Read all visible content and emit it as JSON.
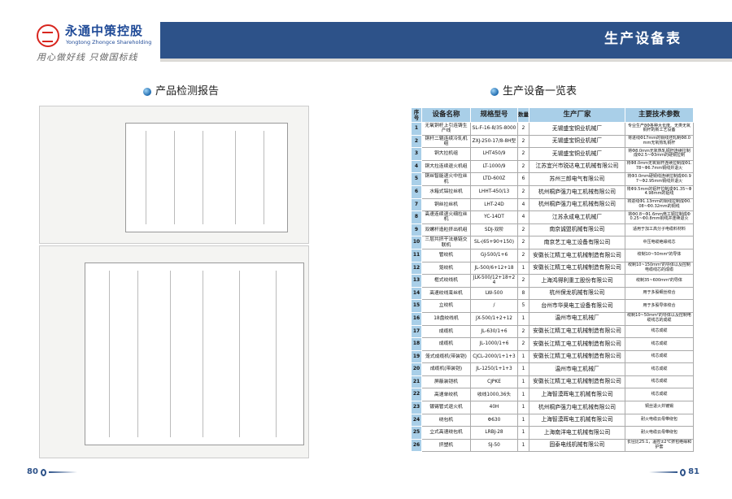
{
  "brand": {
    "name_cn": "永通中策控股",
    "name_en": "Yongtong Zhongce Shareholding",
    "slogan": "用心做好线  只做国标线",
    "logo_color": "#d8261f",
    "brand_color": "#1f4a97"
  },
  "header": {
    "title": "生产设备表",
    "bar_color": "#2d5289"
  },
  "left": {
    "section_title": "产品检测报告",
    "page_number": "80"
  },
  "right": {
    "section_title": "生产设备一览表",
    "page_number": "81"
  },
  "table": {
    "headers": [
      "序号",
      "设备名称",
      "规格型号",
      "数量",
      "生产厂家",
      "主要技术参数"
    ],
    "header_color": "#a9cfe8",
    "rows": [
      [
        "1",
        "无氧铜杆上引连铸生产线",
        "SL-F-16-8/35-8000",
        "2",
        "无锡盛宝铜业机械厂",
        "专业生产8Φ各种大长度、无类无氧铜杆的新工艺设备"
      ],
      [
        "2",
        "铜杆二辊连续冷轧机组",
        "ZXJ-250-17/8-8H型",
        "2",
        "无锡盛宝铜业机械厂",
        "将进线Φ17mm的铜线坯轧制Φ8.0mm无氧热轧铜杆"
      ],
      [
        "3",
        "铜大拉机组",
        "LHT450/9",
        "2",
        "无锡盛宝铜业机械厂",
        "将Φ8.0mm无氧热轧铜杆连续拉制成Φ2.5~Φ3mm的硬铜拉制"
      ],
      [
        "4",
        "铜大拉连续退火机组",
        "LT-1000/9",
        "2",
        "江苏宜兴市锐达电工机械有限公司",
        "将Φ8.0mm无氧铜杆连续拉制成Φ1.78~Φ6.7mm铜线并退火"
      ],
      [
        "5",
        "铜丝智能退火中拉丝机",
        "LTD-600Z",
        "6",
        "苏州三郎电气有限公司",
        "将Φ3.0mm硬铜线连续拉制成Φ0.97~Φ2.95mm铜线并退火"
      ],
      [
        "6",
        "水箱式铝拉丝机",
        "LHHT-450/13",
        "2",
        "杭州桐庐强力电工机械有限公司",
        "将Φ9.5mm的铝杆拉制成Φ1.35~Φ4.98mm的铝线"
      ],
      [
        "7",
        "铜丝拉丝机",
        "LHT-24D",
        "4",
        "杭州桐庐强力电工机械有限公司",
        "将进线Φ1.13mm的铜线拉制成Φ0.08~Φ0.32mm的铜线"
      ],
      [
        "8",
        "高速连续退火细拉丝机",
        "YC-14DT",
        "4",
        "江苏永成电工机械厂",
        "将Φ0.8~Φ1.6mm电工铜拉制成Φ0.25~Φ0.8mm铜线并连续退火"
      ],
      [
        "9",
        "双螺杆造粒挤出机组",
        "SDJ-双阶",
        "2",
        "南京诚盟机械有限公司",
        "适用于加工高分子电缆料材料"
      ],
      [
        "10",
        "三层共挤干法悬链交联机",
        "SL-(65+90+150)",
        "2",
        "南京艺工电工设备有限公司",
        "中压电缆绝缘线芯"
      ],
      [
        "11",
        "管绞机",
        "GJ-500/1+6",
        "2",
        "安徽长江精工电工机械制造有限公司",
        "绞制10~50mm²的导体"
      ],
      [
        "12",
        "笼绞机",
        "JL-500/6+12+18",
        "1",
        "安徽长江精工电工机械制造有限公司",
        "绞制10~150mm²的导体以及控制电缆线芯的成缆"
      ],
      [
        "13",
        "框式绞线机",
        "JLK-500/12+18+24",
        "2",
        "上海鸿得利重工股份有限公司",
        "绞制35~600mm²的导体"
      ],
      [
        "14",
        "高速绞线束丝机",
        "LW-500",
        "8",
        "杭州保龙机械有限公司",
        "用于多股细丝绞合"
      ],
      [
        "15",
        "立绞机",
        "/",
        "5",
        "台州市华昊电工设备有限公司",
        "用于多股导体绞合"
      ],
      [
        "16",
        "18盘绞线机",
        "JX-500/1+2+12",
        "1",
        "温州市电工机械厂",
        "绞制10~50mm²的导体以及控制电缆线芯的成缆"
      ],
      [
        "17",
        "成缆机",
        "JL-630/1+6",
        "2",
        "安徽长江精工电工机械制造有限公司",
        "线芯成缆"
      ],
      [
        "18",
        "成缆机",
        "JL-1000/1+6",
        "2",
        "安徽长江精工电工机械制造有限公司",
        "线芯成缆"
      ],
      [
        "19",
        "笼式成缆机(带装铠)",
        "CJCL-2000/1+1+3",
        "1",
        "安徽长江精工电工机械制造有限公司",
        "线芯成缆"
      ],
      [
        "20",
        "成缆机(带装铠)",
        "JL-1250/1+1+3",
        "1",
        "温州市电工机械厂",
        "线芯成缆"
      ],
      [
        "21",
        "屏蔽装铠机",
        "CJPKE",
        "1",
        "安徽长江精工电工机械制造有限公司",
        "线芯成缆"
      ],
      [
        "22",
        "高速单绞机",
        "收线1000,36头",
        "1",
        "上海智漠晖电工机械有限公司",
        "线芯成缆"
      ],
      [
        "23",
        "镀锡管式退火机",
        "40H",
        "1",
        "杭州桐庐强力电工机械有限公司",
        "铜丝退火并镀锡"
      ],
      [
        "24",
        "绕包机",
        "Φ630",
        "1",
        "上海智漠晖电工机械有限公司",
        "耐火电缆云母带绕包"
      ],
      [
        "25",
        "立式高速绕包机",
        "LRBJ-28",
        "1",
        "上海南洋电工机械有限公司",
        "耐火电缆云母带绕包"
      ],
      [
        "26",
        "挤塑机",
        "SJ-50",
        "1",
        "固泰电线机械有限公司",
        "长径比25:1，温控±2℃挤包绝缘和护套"
      ]
    ]
  }
}
